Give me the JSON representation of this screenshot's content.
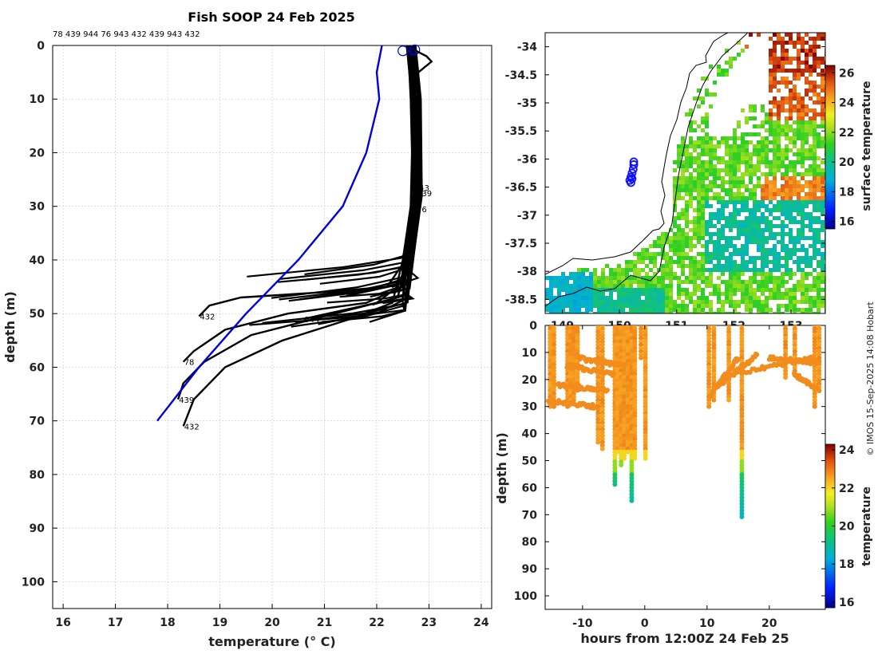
{
  "title": "Fish SOOP 24 Feb 2025",
  "id_list": "78 439 944 76 943 432 439 943 432",
  "credit": "© IMOS 15-Sep-2025 14:08 Hobart",
  "chart_data": [
    {
      "type": "line",
      "name": "profile",
      "xlabel": "temperature (° C)",
      "ylabel": "depth (m)",
      "xlim": [
        15.8,
        24.2
      ],
      "ylim": [
        105,
        0
      ],
      "xticks": [
        16,
        17,
        18,
        19,
        20,
        21,
        22,
        23,
        24
      ],
      "yticks": [
        0,
        10,
        20,
        30,
        40,
        50,
        60,
        70,
        80,
        90,
        100
      ],
      "climatology": {
        "t": [
          22.1,
          22.0,
          22.05,
          21.8,
          21.35,
          20.5,
          19.5,
          18.6,
          17.8
        ],
        "d": [
          0,
          5,
          10,
          20,
          30,
          40,
          50,
          60,
          70
        ]
      },
      "profiles": [
        {
          "label": "78",
          "t": [
            22.6,
            22.65,
            22.7,
            22.65,
            22.5,
            21.8,
            20.3,
            19.1,
            18.5,
            18.3
          ],
          "d": [
            0,
            10,
            30,
            40,
            45,
            48,
            50,
            53,
            57,
            59
          ]
        },
        {
          "label": "439",
          "t": [
            22.6,
            22.7,
            22.7,
            22.6,
            22.4,
            21.2,
            19.6,
            18.7,
            18.3,
            18.2
          ],
          "d": [
            0,
            10,
            30,
            40,
            47,
            50,
            54,
            59,
            63,
            66
          ]
        },
        {
          "label": "432",
          "t": [
            22.6,
            22.7,
            22.65,
            22.5,
            22.3,
            21.5,
            20.2,
            19.1,
            18.5,
            18.3
          ],
          "d": [
            0,
            10,
            30,
            40,
            48,
            51,
            55,
            60,
            66,
            71
          ]
        },
        {
          "label": "432",
          "t": [
            22.6,
            22.7,
            22.7,
            22.55,
            22.2,
            21.0,
            19.4,
            18.8,
            18.6
          ],
          "d": [
            0,
            10,
            30,
            40,
            45,
            46,
            47,
            48.5,
            50.5
          ]
        },
        {
          "label": "944",
          "t": [
            22.6,
            22.7,
            22.7,
            22.6,
            22.4,
            22.0,
            21.3,
            20.6
          ],
          "d": [
            0,
            10,
            30,
            40,
            45,
            48,
            49.5,
            51
          ]
        },
        {
          "label": "943",
          "t": [
            22.7,
            22.7,
            22.75,
            22.7
          ],
          "d": [
            0,
            10,
            20,
            26.5
          ]
        },
        {
          "label": "76",
          "t": [
            22.7,
            22.75,
            22.75,
            22.75
          ],
          "d": [
            0,
            10,
            20,
            30.5
          ]
        },
        {
          "label": "439",
          "t": [
            22.7,
            22.7,
            22.75,
            22.75
          ],
          "d": [
            0,
            10,
            20,
            27.5
          ]
        }
      ]
    },
    {
      "type": "heatmap",
      "name": "surface-temperature-map",
      "colorbar_label": "surface temperature",
      "xlim": [
        148.7,
        153.6
      ],
      "ylim": [
        -38.75,
        -33.75
      ],
      "xticks": [
        149,
        150,
        151,
        152,
        153
      ],
      "xtick_labels": [
        "149",
        "150",
        "151",
        "152",
        "153"
      ],
      "yticks": [
        -34,
        -34.5,
        -35,
        -35.5,
        -36,
        -36.5,
        -37,
        -37.5,
        -38,
        -38.5
      ],
      "cbar_range": [
        15.5,
        26.5
      ],
      "cbar_ticks": [
        16,
        18,
        20,
        22,
        24,
        26
      ],
      "track_lon": [
        150.25,
        150.25,
        150.24,
        150.22,
        150.2,
        150.18,
        150.2,
        150.22
      ],
      "track_lat": [
        -36.05,
        -36.1,
        -36.18,
        -36.25,
        -36.32,
        -36.38,
        -36.42,
        -36.35
      ]
    },
    {
      "type": "scatter",
      "name": "depth-time-section",
      "xlabel": "hours from 12:00Z 24 Feb 25",
      "ylabel": "depth (m)",
      "colorbar_label": "temperature",
      "xlim": [
        -16,
        29
      ],
      "ylim": [
        105,
        0
      ],
      "xticks": [
        -10,
        0,
        10,
        20
      ],
      "yticks": [
        0,
        10,
        20,
        30,
        40,
        50,
        60,
        70,
        80,
        90,
        100
      ],
      "cbar_range": [
        15.7,
        24.3
      ],
      "cbar_ticks": [
        16,
        18,
        20,
        22,
        24
      ],
      "casts": [
        {
          "hour": -15.2,
          "maxd": 30
        },
        {
          "hour": -14.6,
          "maxd": 30
        },
        {
          "hour": -12.4,
          "maxd": 30
        },
        {
          "hour": -11.9,
          "maxd": 29
        },
        {
          "hour": -11.4,
          "maxd": 28
        },
        {
          "hour": -10.8,
          "maxd": 25
        },
        {
          "hour": -7.5,
          "maxd": 44
        },
        {
          "hour": -6.8,
          "maxd": 46
        },
        {
          "hour": -4.8,
          "maxd": 59
        },
        {
          "hour": -4.4,
          "maxd": 48
        },
        {
          "hour": -3.8,
          "maxd": 52
        },
        {
          "hour": -3.3,
          "maxd": 50
        },
        {
          "hour": -2.7,
          "maxd": 47
        },
        {
          "hour": -2.1,
          "maxd": 65
        },
        {
          "hour": -1.6,
          "maxd": 50
        },
        {
          "hour": -0.6,
          "maxd": 12
        },
        {
          "hour": 0.1,
          "maxd": 50
        },
        {
          "hour": 10.3,
          "maxd": 30
        },
        {
          "hour": 11.1,
          "maxd": 28
        },
        {
          "hour": 13.5,
          "maxd": 28
        },
        {
          "hour": 15.6,
          "maxd": 71
        },
        {
          "hour": 22.6,
          "maxd": 20
        },
        {
          "hour": 24.1,
          "maxd": 18
        },
        {
          "hour": 27.3,
          "maxd": 30
        },
        {
          "hour": 28.0,
          "maxd": 25
        }
      ]
    }
  ]
}
